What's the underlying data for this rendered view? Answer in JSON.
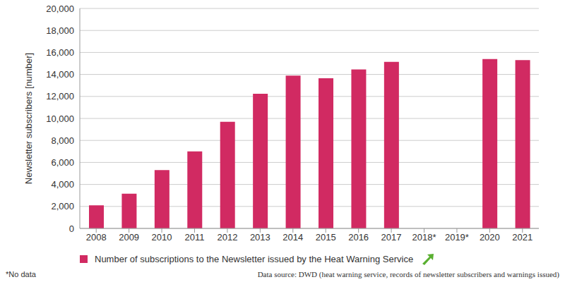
{
  "chart_data": {
    "type": "bar",
    "ylabel": "Newsletter subscribers [number]",
    "categories": [
      "2008",
      "2009",
      "2010",
      "2011",
      "2012",
      "2013",
      "2014",
      "2015",
      "2016",
      "2017",
      "2018*",
      "2019*",
      "2020",
      "2021"
    ],
    "series": [
      {
        "name": "Number of subscriptions to the Newsletter issued by the Heat Warning Service",
        "color": "#d12a62",
        "values": [
          2100,
          3150,
          5300,
          7000,
          9700,
          12250,
          13900,
          13650,
          14450,
          15150,
          null,
          null,
          15400,
          15300
        ]
      }
    ],
    "ylim": [
      0,
      20000
    ],
    "yticks": [
      0,
      {
        "value": 2000,
        "label": "2,000"
      },
      {
        "value": 4000,
        "label": "4,000"
      },
      {
        "value": 6000,
        "label": "6,000"
      },
      {
        "value": 8000,
        "label": "8,000"
      },
      {
        "value": 10000,
        "label": "10,000"
      },
      {
        "value": 12000,
        "label": "12,000"
      },
      {
        "value": 14000,
        "label": "14,000"
      },
      {
        "value": 16000,
        "label": "16,000"
      },
      {
        "value": 18000,
        "label": "18,000"
      },
      {
        "value": 20000,
        "label": "20,000"
      }
    ],
    "grid": true,
    "legend": "bottom",
    "annotations": [
      "*No data",
      "Data source: DWD (heat warning service, records of newsletter subscribers and warnings issued)"
    ]
  }
}
